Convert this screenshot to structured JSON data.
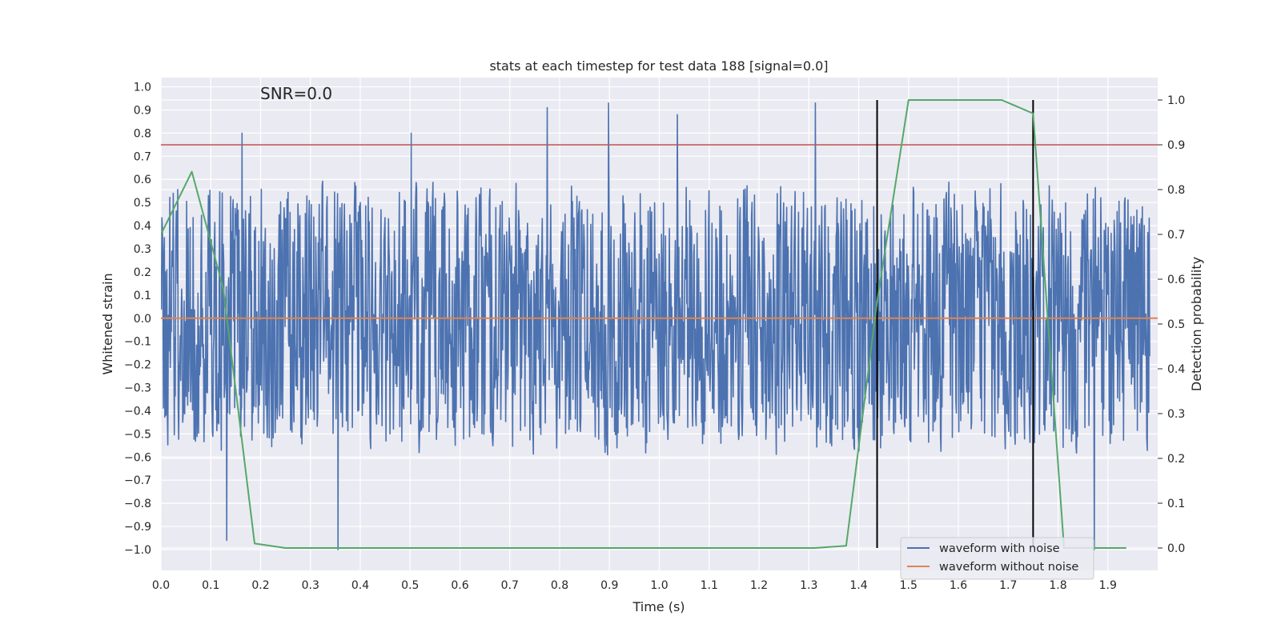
{
  "chart_data": {
    "type": "line",
    "title": "stats at each timestep for test data 188 [signal=0.0]",
    "annotation": "SNR=0.0",
    "xlabel": "Time (s)",
    "ylabel": "Whitened strain",
    "y2label": "Detection probability",
    "xlim": [
      0.0,
      2.0
    ],
    "ylim": [
      -1.09,
      1.04
    ],
    "y2lim": [
      -0.05,
      1.05
    ],
    "x_ticks": [
      "0.0",
      "0.1",
      "0.2",
      "0.3",
      "0.4",
      "0.5",
      "0.6",
      "0.7",
      "0.8",
      "0.9",
      "1.0",
      "1.1",
      "1.2",
      "1.3",
      "1.4",
      "1.5",
      "1.6",
      "1.7",
      "1.8",
      "1.9"
    ],
    "y_ticks": [
      "1.0",
      "0.9",
      "0.8",
      "0.7",
      "0.6",
      "0.5",
      "0.4",
      "0.3",
      "0.2",
      "0.1",
      "0.0",
      "−0.1",
      "−0.2",
      "−0.3",
      "−0.4",
      "−0.5",
      "−0.6",
      "−0.7",
      "−0.8",
      "−0.9",
      "−1.0"
    ],
    "y2_ticks": [
      "1.0",
      "0.9",
      "0.8",
      "0.7",
      "0.6",
      "0.5",
      "0.4",
      "0.3",
      "0.2",
      "0.1",
      "0.0"
    ],
    "grid": true,
    "legend_position": "lower-right",
    "colors": {
      "noisy": "#4c72b0",
      "clean": "#dd8452",
      "probability": "#55a868",
      "threshold": "#c44e52",
      "marker": "#000000",
      "background": "#eaeaf2",
      "grid": "#ffffff"
    },
    "series": [
      {
        "name": "waveform with noise",
        "axis": "left",
        "sampling": "dense noise, amplitude roughly within -1.0 to 0.94",
        "notable_peaks": [
          {
            "x": 0.163,
            "y": 0.8
          },
          {
            "x": 0.502,
            "y": 0.8
          },
          {
            "x": 0.775,
            "y": 0.91
          },
          {
            "x": 0.898,
            "y": 0.93
          },
          {
            "x": 1.036,
            "y": 0.88
          },
          {
            "x": 1.313,
            "y": 0.93
          },
          {
            "x": 0.132,
            "y": -0.96
          },
          {
            "x": 0.355,
            "y": -1.0
          },
          {
            "x": 1.873,
            "y": -1.0
          }
        ]
      },
      {
        "name": "waveform without noise",
        "axis": "left",
        "x": [
          0.0,
          2.0
        ],
        "y": [
          0.0,
          0.0
        ]
      },
      {
        "name": "",
        "axis": "right",
        "x": [
          0.0,
          0.062,
          0.125,
          0.188,
          0.25,
          0.312,
          0.375,
          0.437,
          0.5,
          0.562,
          0.625,
          0.687,
          0.75,
          0.812,
          0.875,
          0.937,
          1.0,
          1.062,
          1.125,
          1.187,
          1.25,
          1.312,
          1.375,
          1.437,
          1.5,
          1.562,
          1.625,
          1.687,
          1.75,
          1.812,
          1.875,
          1.937
        ],
        "y": [
          0.7,
          0.84,
          0.58,
          0.01,
          0.0,
          0.0,
          0.0,
          0.0,
          0.0,
          0.0,
          0.0,
          0.0,
          0.0,
          0.0,
          0.0,
          0.0,
          0.0,
          0.0,
          0.0,
          0.0,
          0.0,
          0.0,
          0.005,
          0.55,
          1.0,
          1.0,
          1.0,
          1.0,
          0.97,
          0.0,
          0.0,
          0.0
        ]
      }
    ],
    "threshold": {
      "axis": "right",
      "y": 0.9
    },
    "vlines": [
      1.437,
      1.75
    ],
    "legend": [
      "waveform with noise",
      "waveform without noise"
    ]
  }
}
